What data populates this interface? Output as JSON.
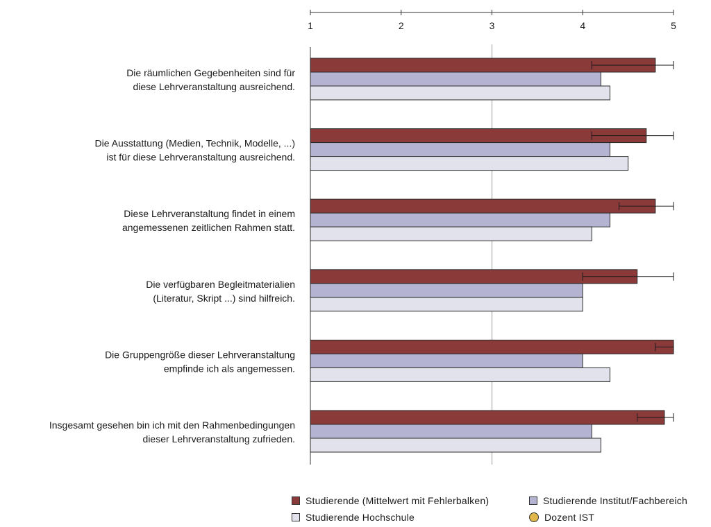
{
  "chart_data": {
    "type": "bar",
    "orientation": "horizontal",
    "xlim": [
      1,
      5
    ],
    "ticks": [
      "1",
      "2",
      "3",
      "4",
      "5"
    ],
    "reference_line": 3,
    "categories": [
      [
        "Die räumlichen Gegebenheiten sind für",
        "diese Lehrveranstaltung ausreichend."
      ],
      [
        "Die Ausstattung (Medien, Technik, Modelle, ...)",
        "ist für diese Lehrveranstaltung ausreichend."
      ],
      [
        "Diese Lehrveranstaltung findet in einem",
        "angemessenen zeitlichen Rahmen statt."
      ],
      [
        "Die verfügbaren Begleitmaterialien",
        "(Literatur, Skript ...) sind hilfreich."
      ],
      [
        "Die Gruppengröße dieser Lehrveranstaltung",
        "empfinde ich als angemessen."
      ],
      [
        "Insgesamt gesehen bin ich mit den Rahmenbedingungen",
        "dieser Lehrveranstaltung zufrieden."
      ]
    ],
    "series": [
      {
        "name": "Studierende (Mittelwert mit Fehlerbalken)",
        "color": "#8b3a3a",
        "values": [
          4.8,
          4.7,
          4.8,
          4.6,
          5.0,
          4.9
        ],
        "error_low": [
          4.1,
          4.1,
          4.4,
          4.0,
          4.8,
          4.6
        ],
        "error_high": [
          5.0,
          5.0,
          5.0,
          5.0,
          5.0,
          5.0
        ]
      },
      {
        "name": "Studierende Institut/Fachbereich",
        "color": "#b4b4d2",
        "values": [
          4.2,
          4.3,
          4.3,
          4.0,
          4.0,
          4.1
        ]
      },
      {
        "name": "Studierende Hochschule",
        "color": "#e2e2ec",
        "values": [
          4.3,
          4.5,
          4.1,
          4.0,
          4.3,
          4.2
        ]
      }
    ],
    "extra_legend": {
      "name": "Dozent IST",
      "color": "#e0b84a",
      "marker": "circle"
    },
    "legend_position": "bottom-right"
  }
}
